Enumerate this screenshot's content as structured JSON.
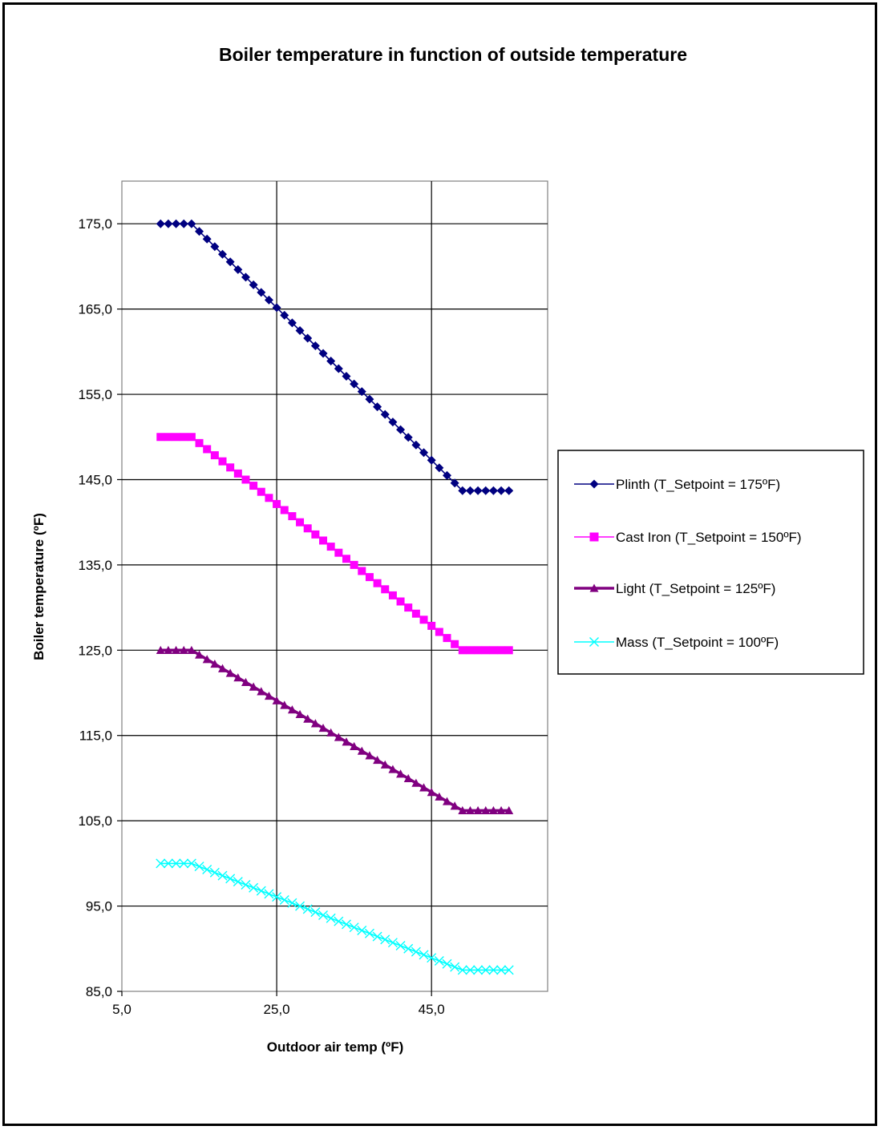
{
  "chart_data": {
    "type": "line",
    "title": "Boiler temperature in function of outside temperature",
    "xlabel": "Outdoor air temp (ºF)",
    "ylabel": "Boiler temperature (ºF)",
    "xlim": [
      5,
      60
    ],
    "ylim": [
      85,
      180
    ],
    "xticks": [
      5,
      25,
      45
    ],
    "xtick_labels": [
      "5,0",
      "25,0",
      "45,0"
    ],
    "yticks": [
      85,
      95,
      105,
      115,
      125,
      135,
      145,
      155,
      165,
      175
    ],
    "ytick_labels": [
      "85,0",
      "95,0",
      "105,0",
      "115,0",
      "125,0",
      "135,0",
      "145,0",
      "155,0",
      "165,0",
      "175,0"
    ],
    "grid": true,
    "legend_position": "right",
    "series": [
      {
        "name": "Plinth (T_Setpoint = 175ºF)",
        "color": "#000080",
        "marker": "diamond",
        "breakpoints": [
          [
            10,
            175
          ],
          [
            14,
            175
          ],
          [
            49,
            143.7
          ],
          [
            55,
            143.7
          ]
        ]
      },
      {
        "name": "Cast Iron (T_Setpoint = 150ºF)",
        "color": "#ff00ff",
        "marker": "square",
        "breakpoints": [
          [
            10,
            150
          ],
          [
            14,
            150
          ],
          [
            49,
            125
          ],
          [
            55,
            125
          ]
        ]
      },
      {
        "name": "Light (T_Setpoint = 125ºF)",
        "color": "#800080",
        "marker": "triangle",
        "breakpoints": [
          [
            10,
            125
          ],
          [
            14,
            125
          ],
          [
            49,
            106.2
          ],
          [
            55,
            106.2
          ]
        ]
      },
      {
        "name": "Mass (T_Setpoint = 100ºF)",
        "color": "#00ffff",
        "marker": "x",
        "breakpoints": [
          [
            10,
            100
          ],
          [
            14,
            100
          ],
          [
            49,
            87.5
          ],
          [
            55,
            87.5
          ]
        ]
      }
    ]
  }
}
